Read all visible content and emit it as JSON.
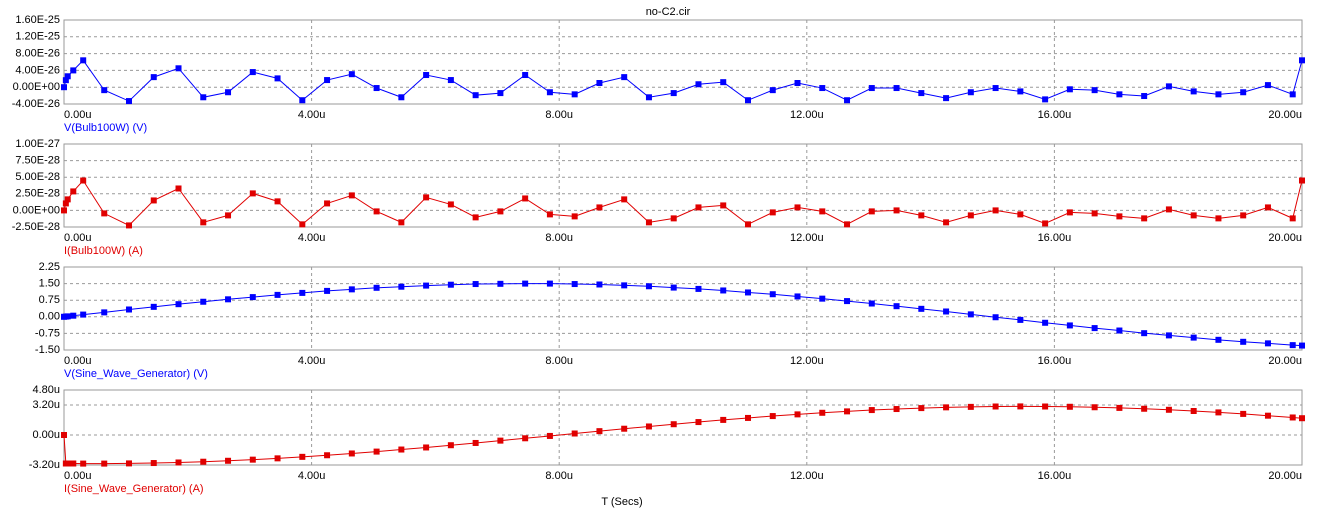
{
  "chart_data": [
    {
      "type": "line",
      "title": "no-C2.cir",
      "grid": true,
      "marker": "square",
      "x": [
        0,
        3e-08,
        6e-08,
        1.5e-07,
        3.1e-07,
        6.5e-07,
        1.05e-06,
        1.45e-06,
        1.85e-06,
        2.25e-06,
        2.65e-06,
        3.05e-06,
        3.45e-06,
        3.85e-06,
        4.25e-06,
        4.65e-06,
        5.05e-06,
        5.45e-06,
        5.85e-06,
        6.25e-06,
        6.65e-06,
        7.05e-06,
        7.45e-06,
        7.85e-06,
        8.25e-06,
        8.65e-06,
        9.05e-06,
        9.45e-06,
        9.85e-06,
        1.025e-05,
        1.065e-05,
        1.105e-05,
        1.145e-05,
        1.185e-05,
        1.225e-05,
        1.265e-05,
        1.305e-05,
        1.345e-05,
        1.385e-05,
        1.425e-05,
        1.465e-05,
        1.505e-05,
        1.545e-05,
        1.585e-05,
        1.625e-05,
        1.665e-05,
        1.705e-05,
        1.745e-05,
        1.785e-05,
        1.825e-05,
        1.865e-05,
        1.905e-05,
        1.945e-05,
        1.985e-05,
        2e-05
      ],
      "series": [
        {
          "name": "V(Bulb100W) (V)",
          "color": "#0000ff",
          "values": [
            0,
            1.67e-26,
            2.6e-26,
            4e-26,
            6.4e-26,
            -7e-27,
            -3.3e-26,
            2.4e-26,
            4.5e-26,
            -2.4e-26,
            -1.2e-26,
            3.6e-26,
            2.1e-26,
            -3.1e-26,
            1.7e-26,
            3.1e-26,
            -2e-27,
            -2.4e-26,
            2.9e-26,
            1.7e-26,
            -1.9e-26,
            -1.4e-26,
            2.9e-26,
            -1.2e-26,
            -1.7e-26,
            1e-26,
            2.4e-26,
            -2.4e-26,
            -1.4e-26,
            7e-27,
            1.2e-26,
            -3.1e-26,
            -7e-27,
            1e-26,
            -2e-27,
            -3.1e-26,
            -2e-27,
            -2e-27,
            -1.4e-26,
            -2.6e-26,
            -1.2e-26,
            -2e-27,
            -1e-26,
            -2.9e-26,
            -5e-27,
            -7e-27,
            -1.7e-26,
            -2.1e-26,
            2e-27,
            -1e-26,
            -1.7e-26,
            -1.2e-26,
            5e-27,
            -1.7e-26,
            6.4e-26
          ]
        }
      ],
      "xlim": [
        0,
        2e-05
      ],
      "xticks": [
        {
          "value": 0,
          "label": "0.00u"
        },
        {
          "value": 4e-06,
          "label": "4.00u"
        },
        {
          "value": 8e-06,
          "label": "8.00u"
        },
        {
          "value": 1.2e-05,
          "label": "12.00u"
        },
        {
          "value": 1.6e-05,
          "label": "16.00u"
        },
        {
          "value": 2e-05,
          "label": "20.00u"
        }
      ],
      "ylim": [
        -4e-26,
        1.6e-25
      ],
      "yticks": [
        {
          "value": 1.6e-25,
          "label": "1.60E-25"
        },
        {
          "value": 1.2e-25,
          "label": "1.20E-25"
        },
        {
          "value": 8e-26,
          "label": "8.00E-26"
        },
        {
          "value": 4e-26,
          "label": "4.00E-26"
        },
        {
          "value": 0,
          "label": "0.00E+00"
        },
        {
          "value": -4e-26,
          "label": "-4.00E-26"
        }
      ]
    },
    {
      "type": "line",
      "grid": true,
      "marker": "square",
      "x": [
        0,
        3e-08,
        6e-08,
        1.5e-07,
        3.1e-07,
        6.5e-07,
        1.05e-06,
        1.45e-06,
        1.85e-06,
        2.25e-06,
        2.65e-06,
        3.05e-06,
        3.45e-06,
        3.85e-06,
        4.25e-06,
        4.65e-06,
        5.05e-06,
        5.45e-06,
        5.85e-06,
        6.25e-06,
        6.65e-06,
        7.05e-06,
        7.45e-06,
        7.85e-06,
        8.25e-06,
        8.65e-06,
        9.05e-06,
        9.45e-06,
        9.85e-06,
        1.025e-05,
        1.065e-05,
        1.105e-05,
        1.145e-05,
        1.185e-05,
        1.225e-05,
        1.265e-05,
        1.305e-05,
        1.345e-05,
        1.385e-05,
        1.425e-05,
        1.465e-05,
        1.505e-05,
        1.545e-05,
        1.585e-05,
        1.625e-05,
        1.665e-05,
        1.705e-05,
        1.745e-05,
        1.785e-05,
        1.825e-05,
        1.865e-05,
        1.905e-05,
        1.945e-05,
        1.985e-05,
        2e-05
      ],
      "series": [
        {
          "name": "I(Bulb100W) (A)",
          "color": "#e00000",
          "values": [
            0,
            1.05e-28,
            1.66e-28,
            2.86e-28,
            4.5e-28,
            -4.5e-29,
            -2.26e-28,
            1.5e-28,
            3.3e-28,
            -1.8e-28,
            -7.5e-29,
            2.56e-28,
            1.36e-28,
            -2.1e-28,
            1.05e-28,
            2.26e-28,
            -1.5e-29,
            -1.8e-28,
            1.96e-28,
            9e-29,
            -1.05e-28,
            -1.5e-29,
            1.8e-28,
            -6e-29,
            -9e-29,
            4.5e-29,
            1.66e-28,
            -1.8e-28,
            -1.2e-28,
            4.5e-29,
            7.5e-29,
            -2.1e-28,
            -3e-29,
            4.5e-29,
            -1.5e-29,
            -2.1e-28,
            -1.5e-29,
            0,
            -7.5e-29,
            -1.8e-28,
            -7.5e-29,
            0,
            -6e-29,
            -1.96e-28,
            -3e-29,
            -4.5e-29,
            -9e-29,
            -1.2e-28,
            1.5e-29,
            -7.5e-29,
            -1.2e-28,
            -7.5e-29,
            4.5e-29,
            -1.2e-28,
            4.5e-28
          ]
        }
      ],
      "xlim": [
        0,
        2e-05
      ],
      "xticks": [
        {
          "value": 0,
          "label": "0.00u"
        },
        {
          "value": 4e-06,
          "label": "4.00u"
        },
        {
          "value": 8e-06,
          "label": "8.00u"
        },
        {
          "value": 1.2e-05,
          "label": "12.00u"
        },
        {
          "value": 1.6e-05,
          "label": "16.00u"
        },
        {
          "value": 2e-05,
          "label": "20.00u"
        }
      ],
      "ylim": [
        -2.5e-28,
        1e-27
      ],
      "yticks": [
        {
          "value": 1e-27,
          "label": "1.00E-27"
        },
        {
          "value": 7.5e-28,
          "label": "7.50E-28"
        },
        {
          "value": 5e-28,
          "label": "5.00E-28"
        },
        {
          "value": 2.5e-28,
          "label": "2.50E-28"
        },
        {
          "value": 0,
          "label": "0.00E+00"
        },
        {
          "value": -2.5e-28,
          "label": "-2.50E-28"
        }
      ]
    },
    {
      "type": "line",
      "grid": true,
      "marker": "square",
      "x": [
        0,
        3e-08,
        6e-08,
        1.5e-07,
        3.1e-07,
        6.5e-07,
        1.05e-06,
        1.45e-06,
        1.85e-06,
        2.25e-06,
        2.65e-06,
        3.05e-06,
        3.45e-06,
        3.85e-06,
        4.25e-06,
        4.65e-06,
        5.05e-06,
        5.45e-06,
        5.85e-06,
        6.25e-06,
        6.65e-06,
        7.05e-06,
        7.45e-06,
        7.85e-06,
        8.25e-06,
        8.65e-06,
        9.05e-06,
        9.45e-06,
        9.85e-06,
        1.025e-05,
        1.065e-05,
        1.105e-05,
        1.145e-05,
        1.185e-05,
        1.225e-05,
        1.265e-05,
        1.305e-05,
        1.345e-05,
        1.385e-05,
        1.425e-05,
        1.465e-05,
        1.505e-05,
        1.545e-05,
        1.585e-05,
        1.625e-05,
        1.665e-05,
        1.705e-05,
        1.745e-05,
        1.785e-05,
        1.825e-05,
        1.865e-05,
        1.905e-05,
        1.945e-05,
        1.985e-05,
        2e-05
      ],
      "series": [
        {
          "name": "V(Sine_Wave_Generator) (V)",
          "color": "#0000ff",
          "values": [
            0,
            0.01,
            0.02,
            0.05,
            0.1,
            0.2,
            0.33,
            0.45,
            0.57,
            0.68,
            0.79,
            0.89,
            0.99,
            1.08,
            1.17,
            1.24,
            1.31,
            1.36,
            1.41,
            1.45,
            1.48,
            1.49,
            1.5,
            1.5,
            1.48,
            1.46,
            1.42,
            1.38,
            1.32,
            1.26,
            1.19,
            1.1,
            1.02,
            0.92,
            0.82,
            0.71,
            0.6,
            0.48,
            0.36,
            0.24,
            0.11,
            -0.02,
            -0.14,
            -0.27,
            -0.39,
            -0.51,
            -0.62,
            -0.74,
            -0.84,
            -0.94,
            -1.04,
            -1.13,
            -1.2,
            -1.28,
            -1.3
          ]
        }
      ],
      "xlim": [
        0,
        2e-05
      ],
      "xticks": [
        {
          "value": 0,
          "label": "0.00u"
        },
        {
          "value": 4e-06,
          "label": "4.00u"
        },
        {
          "value": 8e-06,
          "label": "8.00u"
        },
        {
          "value": 1.2e-05,
          "label": "12.00u"
        },
        {
          "value": 1.6e-05,
          "label": "16.00u"
        },
        {
          "value": 2e-05,
          "label": "20.00u"
        }
      ],
      "ylim": [
        -1.5,
        2.25
      ],
      "yticks": [
        {
          "value": 2.25,
          "label": "2.25"
        },
        {
          "value": 1.5,
          "label": "1.50"
        },
        {
          "value": 0.75,
          "label": "0.75"
        },
        {
          "value": 0,
          "label": "0.00"
        },
        {
          "value": -0.75,
          "label": "-0.75"
        },
        {
          "value": -1.5,
          "label": "-1.50"
        }
      ]
    },
    {
      "type": "line",
      "xlabel": "T (Secs)",
      "grid": true,
      "marker": "square",
      "x": [
        0,
        3e-08,
        6e-08,
        1.5e-07,
        3.1e-07,
        6.5e-07,
        1.05e-06,
        1.45e-06,
        1.85e-06,
        2.25e-06,
        2.65e-06,
        3.05e-06,
        3.45e-06,
        3.85e-06,
        4.25e-06,
        4.65e-06,
        5.05e-06,
        5.45e-06,
        5.85e-06,
        6.25e-06,
        6.65e-06,
        7.05e-06,
        7.45e-06,
        7.85e-06,
        8.25e-06,
        8.65e-06,
        9.05e-06,
        9.45e-06,
        9.85e-06,
        1.025e-05,
        1.065e-05,
        1.105e-05,
        1.145e-05,
        1.185e-05,
        1.225e-05,
        1.265e-05,
        1.305e-05,
        1.345e-05,
        1.385e-05,
        1.425e-05,
        1.465e-05,
        1.505e-05,
        1.545e-05,
        1.585e-05,
        1.625e-05,
        1.665e-05,
        1.705e-05,
        1.745e-05,
        1.785e-05,
        1.825e-05,
        1.865e-05,
        1.905e-05,
        1.945e-05,
        1.985e-05,
        2e-05
      ],
      "series": [
        {
          "name": "I(Sine_Wave_Generator) (A)",
          "color": "#e00000",
          "values": [
            0,
            -3.04e-06,
            -3.04e-06,
            -3.04e-06,
            -3.05e-06,
            -3.05e-06,
            -3.03e-06,
            -2.99e-06,
            -2.93e-06,
            -2.85e-06,
            -2.75e-06,
            -2.63e-06,
            -2.49e-06,
            -2.33e-06,
            -2.16e-06,
            -1.97e-06,
            -1.77e-06,
            -1.55e-06,
            -1.33e-06,
            -1.09e-06,
            -8.5e-07,
            -6e-07,
            -3.5e-07,
            -1e-07,
            1.6e-07,
            4.1e-07,
            6.7e-07,
            9.1e-07,
            1.15e-06,
            1.38e-06,
            1.61e-06,
            1.82e-06,
            2.02e-06,
            2.2e-06,
            2.37e-06,
            2.52e-06,
            2.66e-06,
            2.77e-06,
            2.87e-06,
            2.95e-06,
            3e-06,
            3.04e-06,
            3.05e-06,
            3.04e-06,
            3.01e-06,
            2.96e-06,
            2.89e-06,
            2.8e-06,
            2.69e-06,
            2.56e-06,
            2.41e-06,
            2.25e-06,
            2.06e-06,
            1.87e-06,
            1.79e-06
          ]
        }
      ],
      "xlim": [
        0,
        2e-05
      ],
      "xticks": [
        {
          "value": 0,
          "label": "0.00u"
        },
        {
          "value": 4e-06,
          "label": "4.00u"
        },
        {
          "value": 8e-06,
          "label": "8.00u"
        },
        {
          "value": 1.2e-05,
          "label": "12.00u"
        },
        {
          "value": 1.6e-05,
          "label": "16.00u"
        },
        {
          "value": 2e-05,
          "label": "20.00u"
        }
      ],
      "ylim": [
        -3.2e-06,
        4.8e-06
      ],
      "yticks": [
        {
          "value": 4.8e-06,
          "label": "4.80u"
        },
        {
          "value": 3.2e-06,
          "label": "3.20u"
        },
        {
          "value": 0,
          "label": "0.00u"
        },
        {
          "value": -3.2e-06,
          "label": "-3.20u"
        }
      ]
    }
  ]
}
